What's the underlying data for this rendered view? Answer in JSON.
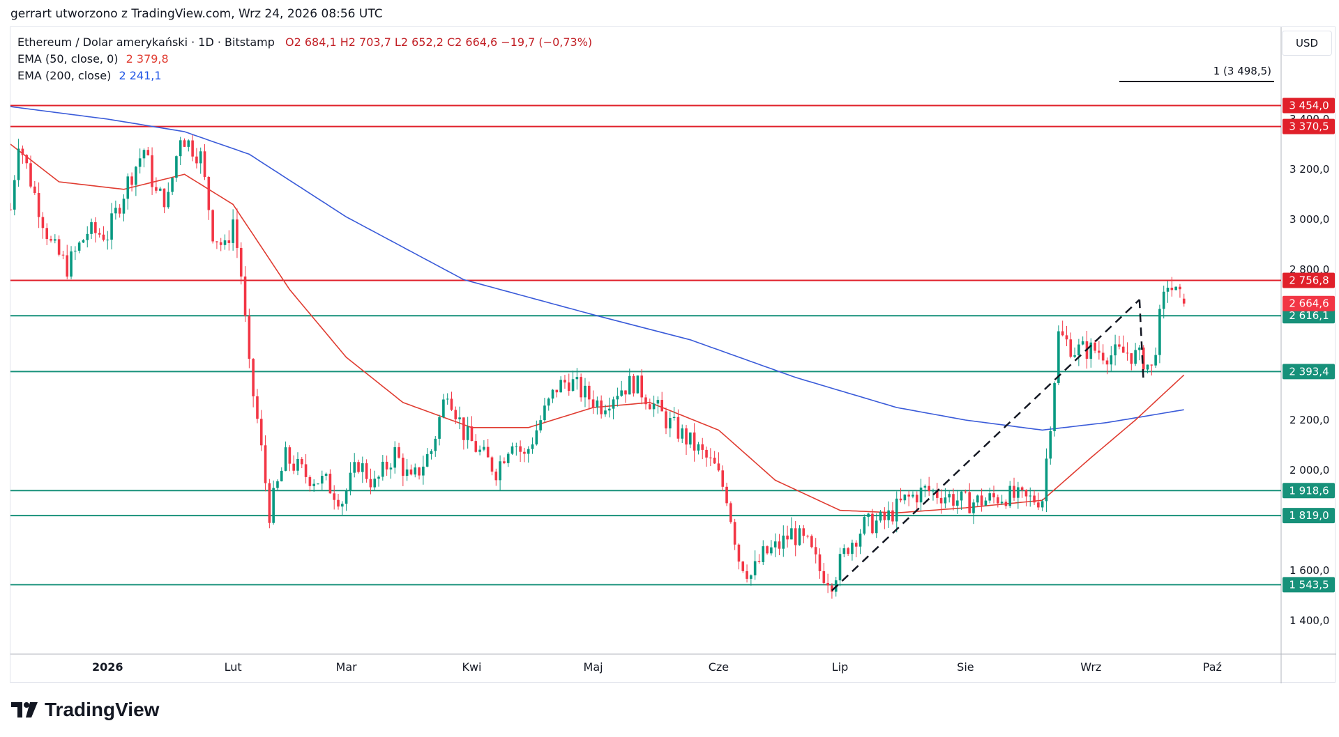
{
  "header": {
    "caption": "gerrart utworzono z TradingView.com, Wrz 24, 2026 08:56 UTC"
  },
  "legend": {
    "symbol": "Ethereum / Dolar amerykański · 1D · Bitstamp",
    "ohlc": "O2 684,1  H2 703,7  L2 652,2  C2 664,6  −19,7 (−0,73%)",
    "ema50_label": "EMA (50, close, 0)",
    "ema50_value": "2 379,8",
    "ema200_label": "EMA (200, close)",
    "ema200_value": "2 241,1"
  },
  "currency": "USD",
  "brand": "TradingView",
  "colors": {
    "up": "#089981",
    "down": "#f23645",
    "ema50": "#e03c31",
    "ema200": "#3a5bd9",
    "resistance": "#e0202a",
    "support": "#17917a"
  },
  "chart_data": {
    "type": "candlestick",
    "symbol": "ETH/USD",
    "ylim": [
      1300,
      3600
    ],
    "y_ticks": [
      1400,
      1600,
      2000,
      2200,
      2800,
      3000,
      3200,
      3400
    ],
    "y_tick_labels": [
      "1 400,0",
      "1 600,0",
      "2 000,0",
      "2 200,0",
      "2 800,0",
      "3 000,0",
      "3 200,0",
      "3 400,0"
    ],
    "x_ticks": [
      {
        "label": "2026",
        "date": "2026-01-01",
        "bold": true
      },
      {
        "label": "Lut",
        "date": "2026-02-01"
      },
      {
        "label": "Mar",
        "date": "2026-03-01"
      },
      {
        "label": "Kwi",
        "date": "2026-04-01"
      },
      {
        "label": "Maj",
        "date": "2026-05-01"
      },
      {
        "label": "Cze",
        "date": "2026-06-01"
      },
      {
        "label": "Lip",
        "date": "2026-07-01"
      },
      {
        "label": "Sie",
        "date": "2026-08-01"
      },
      {
        "label": "Wrz",
        "date": "2026-09-01"
      },
      {
        "label": "Paź",
        "date": "2026-10-01"
      }
    ],
    "x_range": [
      "2025-12-08",
      "2026-10-18"
    ],
    "closes_anchor": [
      [
        "2025-12-08",
        3040
      ],
      [
        "2025-12-10",
        3320
      ],
      [
        "2025-12-14",
        3100
      ],
      [
        "2025-12-18",
        2900
      ],
      [
        "2025-12-22",
        2810
      ],
      [
        "2025-12-27",
        2950
      ],
      [
        "2026-01-01",
        2940
      ],
      [
        "2026-01-06",
        3150
      ],
      [
        "2026-01-10",
        3280
      ],
      [
        "2026-01-13",
        3100
      ],
      [
        "2026-01-16",
        3080
      ],
      [
        "2026-01-19",
        3340
      ],
      [
        "2026-01-24",
        3250
      ],
      [
        "2026-01-27",
        2950
      ],
      [
        "2026-01-30",
        2880
      ],
      [
        "2026-02-01",
        3000
      ],
      [
        "2026-02-03",
        2780
      ],
      [
        "2026-02-05",
        2400
      ],
      [
        "2026-02-07",
        2200
      ],
      [
        "2026-02-10",
        1830
      ],
      [
        "2026-02-14",
        2050
      ],
      [
        "2026-02-19",
        1980
      ],
      [
        "2026-02-24",
        1950
      ],
      [
        "2026-02-28",
        1880
      ],
      [
        "2026-03-04",
        2030
      ],
      [
        "2026-03-08",
        1940
      ],
      [
        "2026-03-13",
        2070
      ],
      [
        "2026-03-17",
        1950
      ],
      [
        "2026-03-22",
        2080
      ],
      [
        "2026-03-26",
        2330
      ],
      [
        "2026-03-30",
        2150
      ],
      [
        "2026-04-03",
        2070
      ],
      [
        "2026-04-07",
        2000
      ],
      [
        "2026-04-11",
        2130
      ],
      [
        "2026-04-14",
        2050
      ],
      [
        "2026-04-18",
        2200
      ],
      [
        "2026-04-22",
        2330
      ],
      [
        "2026-04-25",
        2360
      ],
      [
        "2026-04-29",
        2300
      ],
      [
        "2026-05-03",
        2260
      ],
      [
        "2026-05-07",
        2320
      ],
      [
        "2026-05-11",
        2350
      ],
      [
        "2026-05-15",
        2280
      ],
      [
        "2026-05-19",
        2200
      ],
      [
        "2026-05-23",
        2140
      ],
      [
        "2026-05-27",
        2080
      ],
      [
        "2026-05-31",
        2010
      ],
      [
        "2026-06-03",
        1900
      ],
      [
        "2026-06-06",
        1650
      ],
      [
        "2026-06-09",
        1580
      ],
      [
        "2026-06-12",
        1660
      ],
      [
        "2026-06-16",
        1700
      ],
      [
        "2026-06-19",
        1750
      ],
      [
        "2026-06-23",
        1700
      ],
      [
        "2026-06-26",
        1600
      ],
      [
        "2026-06-29",
        1560
      ],
      [
        "2026-07-03",
        1700
      ],
      [
        "2026-07-07",
        1780
      ],
      [
        "2026-07-12",
        1800
      ],
      [
        "2026-07-17",
        1880
      ],
      [
        "2026-07-22",
        1920
      ],
      [
        "2026-07-27",
        1900
      ],
      [
        "2026-08-01",
        1870
      ],
      [
        "2026-08-06",
        1880
      ],
      [
        "2026-08-11",
        1900
      ],
      [
        "2026-08-16",
        1880
      ],
      [
        "2026-08-20",
        1890
      ],
      [
        "2026-08-22",
        2200
      ],
      [
        "2026-08-24",
        2540
      ],
      [
        "2026-08-28",
        2480
      ],
      [
        "2026-09-02",
        2480
      ],
      [
        "2026-09-06",
        2460
      ],
      [
        "2026-09-10",
        2470
      ],
      [
        "2026-09-14",
        2440
      ],
      [
        "2026-09-16",
        2400
      ],
      [
        "2026-09-18",
        2600
      ],
      [
        "2026-09-20",
        2750
      ],
      [
        "2026-09-22",
        2700
      ],
      [
        "2026-09-24",
        2664.6
      ]
    ],
    "last_candle": {
      "date": "2026-09-24",
      "open": 2684.1,
      "high": 2703.7,
      "low": 2652.2,
      "close": 2664.6
    },
    "ema50_anchor": [
      [
        "2025-12-08",
        3300
      ],
      [
        "2025-12-20",
        3150
      ],
      [
        "2026-01-05",
        3120
      ],
      [
        "2026-01-20",
        3180
      ],
      [
        "2026-02-01",
        3060
      ],
      [
        "2026-02-15",
        2720
      ],
      [
        "2026-03-01",
        2450
      ],
      [
        "2026-03-15",
        2270
      ],
      [
        "2026-04-01",
        2170
      ],
      [
        "2026-04-15",
        2170
      ],
      [
        "2026-05-01",
        2250
      ],
      [
        "2026-05-15",
        2270
      ],
      [
        "2026-06-01",
        2160
      ],
      [
        "2026-06-15",
        1960
      ],
      [
        "2026-07-01",
        1840
      ],
      [
        "2026-07-15",
        1830
      ],
      [
        "2026-08-01",
        1850
      ],
      [
        "2026-08-20",
        1880
      ],
      [
        "2026-09-01",
        2050
      ],
      [
        "2026-09-12",
        2200
      ],
      [
        "2026-09-24",
        2379.8
      ]
    ],
    "ema200_anchor": [
      [
        "2025-12-08",
        3450
      ],
      [
        "2026-01-01",
        3400
      ],
      [
        "2026-01-20",
        3350
      ],
      [
        "2026-02-05",
        3260
      ],
      [
        "2026-03-01",
        3010
      ],
      [
        "2026-03-30",
        2760
      ],
      [
        "2026-05-01",
        2620
      ],
      [
        "2026-05-25",
        2520
      ],
      [
        "2026-06-20",
        2370
      ],
      [
        "2026-07-15",
        2250
      ],
      [
        "2026-08-01",
        2200
      ],
      [
        "2026-08-20",
        2160
      ],
      [
        "2026-09-05",
        2190
      ],
      [
        "2026-09-24",
        2241.1
      ]
    ],
    "horizontal_levels": [
      {
        "value": 3454.0,
        "label": "3 454,0",
        "kind": "resistance"
      },
      {
        "value": 3370.5,
        "label": "3 370,5",
        "kind": "resistance"
      },
      {
        "value": 2756.8,
        "label": "2 756,8",
        "kind": "resistance"
      },
      {
        "value": 2616.1,
        "label": "2 616,1",
        "kind": "support"
      },
      {
        "value": 2393.4,
        "label": "2 393,4",
        "kind": "support"
      },
      {
        "value": 1918.6,
        "label": "1 918,6",
        "kind": "support"
      },
      {
        "value": 1819.0,
        "label": "1 819,0",
        "kind": "support"
      },
      {
        "value": 1543.5,
        "label": "1 543,5",
        "kind": "support"
      }
    ],
    "last_price_label": {
      "value": 2664.6,
      "label": "2 664,6"
    },
    "measure_line": {
      "label": "1 (3 498,5)",
      "value": 3498.5
    },
    "trend_line": {
      "from": [
        "2026-06-29",
        1520
      ],
      "to": [
        "2026-09-13",
        2680
      ],
      "style": "dashed",
      "end_marker": [
        "2026-09-14",
        2350
      ]
    }
  }
}
